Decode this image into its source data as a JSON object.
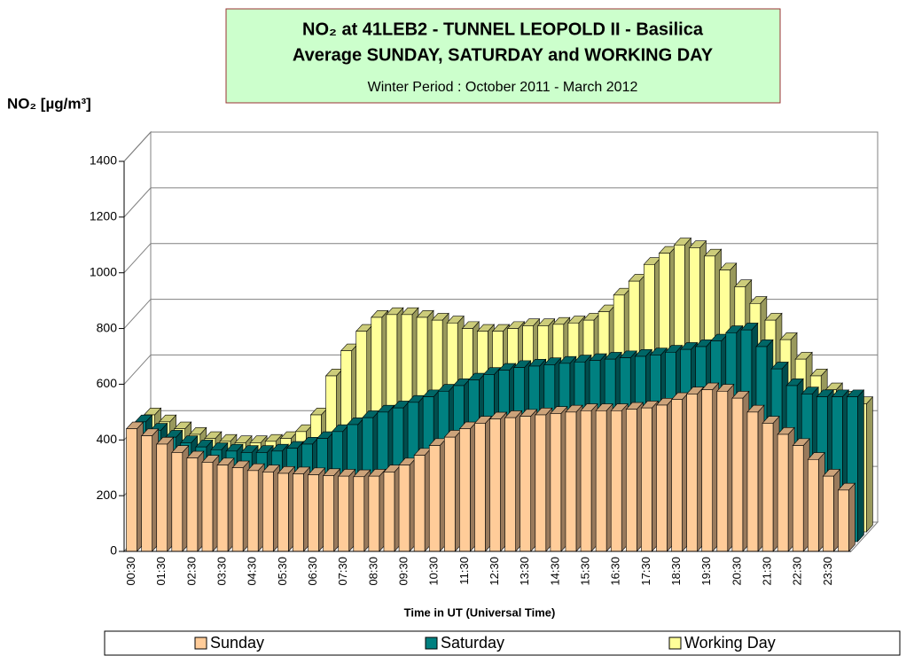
{
  "chart_data": {
    "type": "bar3d",
    "title": "NO₂ at 41LEB2 - TUNNEL LEOPOLD II - Basilica",
    "subtitle": "Average SUNDAY, SATURDAY and WORKING DAY",
    "period": "Winter Period : October 2011 - March 2012",
    "y_label": "NO₂  [µg/m³]",
    "x_label": "Time in UT (Universal Time)",
    "categories": [
      "00:30",
      null,
      "01:30",
      null,
      "02:30",
      null,
      "03:30",
      null,
      "04:30",
      null,
      "05:30",
      null,
      "06:30",
      null,
      "07:30",
      null,
      "08:30",
      null,
      "09:30",
      null,
      "10:30",
      null,
      "11:30",
      null,
      "12:30",
      null,
      "13:30",
      null,
      "14:30",
      null,
      "15:30",
      null,
      "16:30",
      null,
      "17:30",
      null,
      "18:30",
      null,
      "19:30",
      null,
      "20:30",
      null,
      "21:30",
      null,
      "22:30",
      null,
      "23:30",
      null
    ],
    "series": [
      {
        "name": "Sunday",
        "color": "#ffcc99",
        "values": [
          440,
          415,
          385,
          355,
          335,
          320,
          310,
          300,
          290,
          285,
          280,
          278,
          275,
          272,
          270,
          268,
          270,
          285,
          310,
          345,
          380,
          410,
          440,
          460,
          475,
          480,
          485,
          490,
          495,
          500,
          505,
          505,
          505,
          510,
          515,
          525,
          545,
          565,
          580,
          575,
          550,
          500,
          460,
          420,
          380,
          330,
          270,
          220
        ]
      },
      {
        "name": "Saturday",
        "color": "#008080",
        "values": [
          430,
          400,
          375,
          355,
          340,
          330,
          325,
          320,
          320,
          325,
          335,
          350,
          370,
          395,
          420,
          445,
          465,
          480,
          500,
          520,
          540,
          560,
          580,
          600,
          615,
          625,
          630,
          635,
          640,
          645,
          650,
          655,
          660,
          665,
          670,
          680,
          690,
          700,
          720,
          750,
          760,
          700,
          620,
          560,
          530,
          520,
          520,
          520
        ]
      },
      {
        "name": "Working Day",
        "color": "#ffff99",
        "values": [
          420,
          395,
          370,
          350,
          335,
          325,
          320,
          320,
          325,
          335,
          360,
          420,
          560,
          650,
          720,
          770,
          780,
          780,
          770,
          760,
          750,
          730,
          720,
          720,
          730,
          740,
          740,
          745,
          750,
          760,
          790,
          850,
          900,
          960,
          1000,
          1030,
          1020,
          990,
          940,
          880,
          820,
          760,
          690,
          620,
          560,
          510,
          480,
          460
        ]
      }
    ],
    "ylim": [
      0,
      1400
    ],
    "yticks": [
      0,
      200,
      400,
      600,
      800,
      1000,
      1200,
      1400
    ],
    "grid": true
  }
}
